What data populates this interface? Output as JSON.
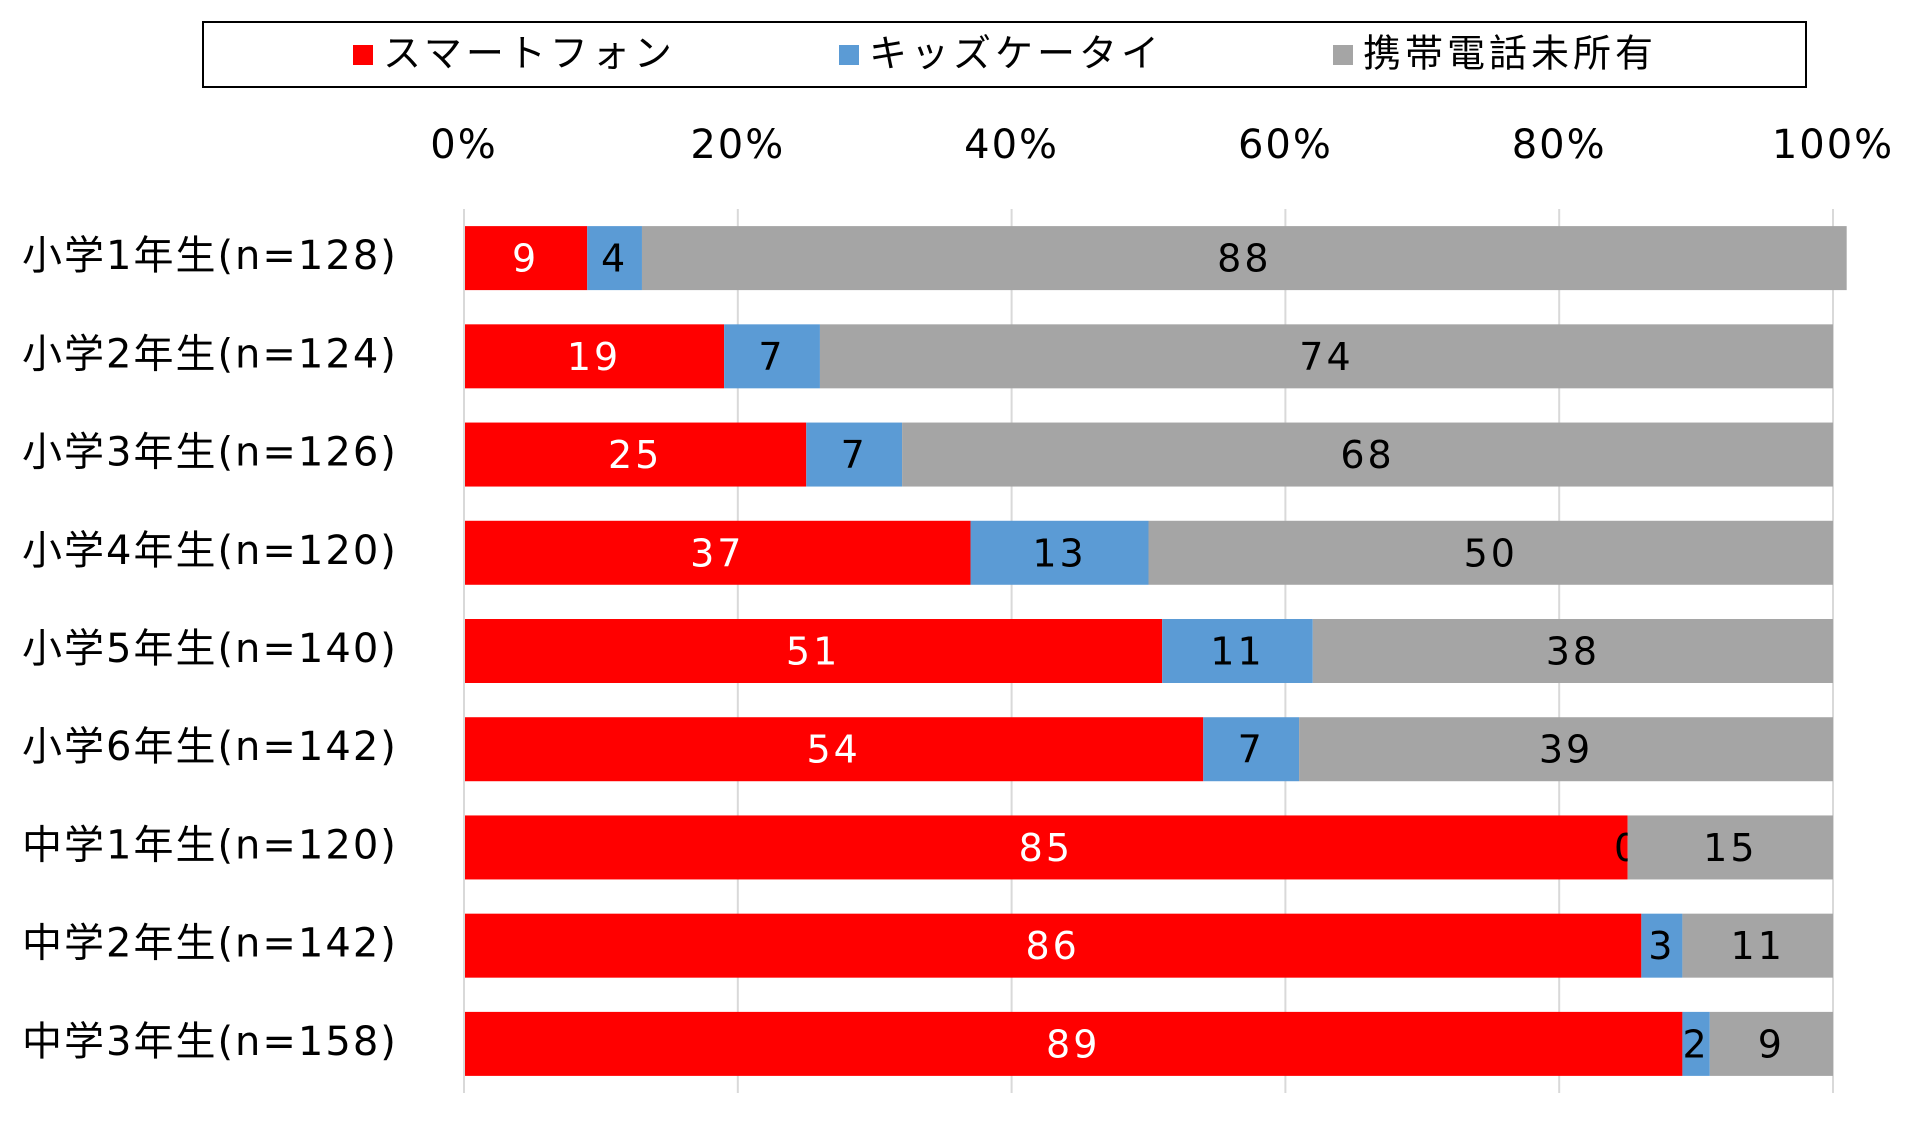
{
  "chart_data": {
    "type": "stacked-bar-horizontal",
    "categories": [
      "小学1年生(n=128)",
      "小学2年生(n=124)",
      "小学3年生(n=126)",
      "小学4年生(n=120)",
      "小学5年生(n=140)",
      "小学6年生(n=142)",
      "中学1年生(n=120)",
      "中学2年生(n=142)",
      "中学3年生(n=158)"
    ],
    "series": [
      {
        "name": "スマートフォン",
        "color": "#ff0000",
        "label_color": "#ffffff",
        "values": [
          9,
          19,
          25,
          37,
          51,
          54,
          85,
          86,
          89
        ]
      },
      {
        "name": "キッズケータイ",
        "color": "#5b9bd5",
        "label_color": "#000000",
        "values": [
          4,
          7,
          7,
          13,
          11,
          7,
          0,
          3,
          2
        ]
      },
      {
        "name": "携帯電話未所有",
        "color": "#a5a5a5",
        "label_color": "#000000",
        "values": [
          88,
          74,
          68,
          50,
          38,
          39,
          15,
          11,
          9
        ]
      }
    ],
    "xlim": [
      0,
      100
    ],
    "xticks": [
      {
        "value": 0,
        "label": "0%"
      },
      {
        "value": 20,
        "label": "20%"
      },
      {
        "value": 40,
        "label": "40%"
      },
      {
        "value": 60,
        "label": "60%"
      },
      {
        "value": 80,
        "label": "80%"
      },
      {
        "value": 100,
        "label": "100%"
      }
    ],
    "grid": true,
    "legend": "top"
  }
}
